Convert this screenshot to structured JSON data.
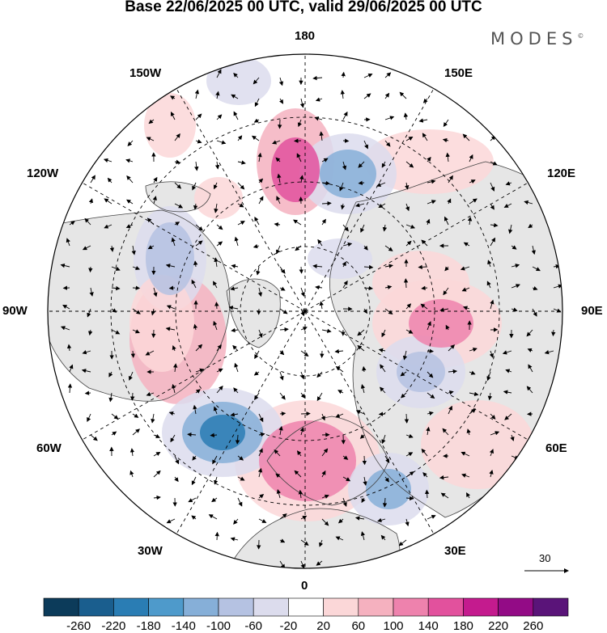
{
  "title": "Base 22/06/2025 00 UTC, valid 29/06/2025 00 UTC",
  "brand": {
    "name": "MODES",
    "mark": "©"
  },
  "longitude_labels": {
    "lon_180": "180",
    "lon_150w": "150W",
    "lon_150e": "150E",
    "lon_120w": "120W",
    "lon_120e": "120E",
    "lon_90w": "90W",
    "lon_90e": "90E",
    "lon_60w": "60W",
    "lon_60e": "60E",
    "lon_30w": "30W",
    "lon_30e": "30E",
    "lon_0": "0"
  },
  "reference_vector": {
    "value": "30"
  },
  "colorbar": {
    "ticks": [
      "-260",
      "-220",
      "-180",
      "-140",
      "-100",
      "-60",
      "-20",
      "20",
      "60",
      "100",
      "140",
      "180",
      "220",
      "260"
    ],
    "colors": [
      "#0c3b5a",
      "#1a5e8e",
      "#2a7db4",
      "#4e9acb",
      "#86afd8",
      "#b5c2e2",
      "#dcdced",
      "#ffffff",
      "#fbd7d8",
      "#f5b1bf",
      "#ee82ad",
      "#e2519d",
      "#c41b8e",
      "#930b86",
      "#5a1479"
    ]
  },
  "map_style": {
    "land_color": "#e6e6e6",
    "ocean_color": "#ffffff",
    "graticule_color": "#000000"
  }
}
